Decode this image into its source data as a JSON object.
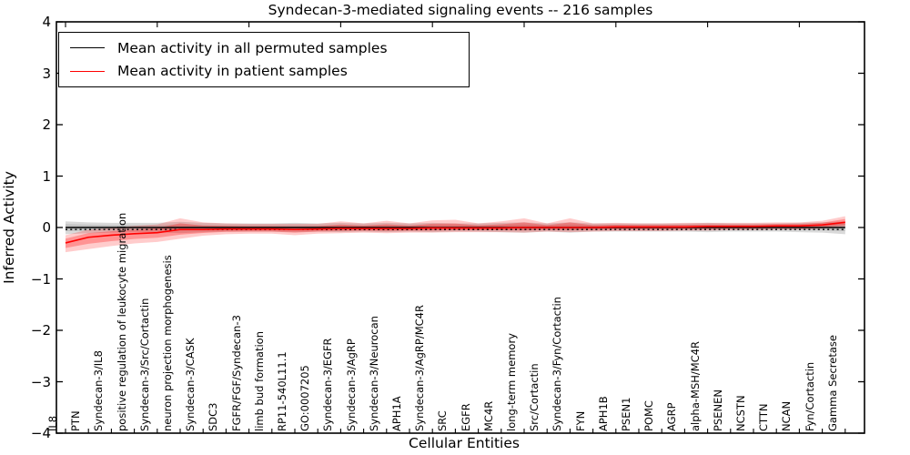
{
  "figure_background": "#ffffff",
  "chart_data": {
    "type": "line",
    "title": "Syndecan-3-mediated signaling events -- 216 samples",
    "xlabel": "Cellular Entities",
    "ylabel": "Inferred Activity",
    "ylim": [
      -4,
      4
    ],
    "ytick_labels": [
      "4",
      "3",
      "2",
      "1",
      "0",
      "−1",
      "−2",
      "−3",
      "−4"
    ],
    "ytick_values": [
      4,
      3,
      2,
      1,
      0,
      -1,
      -2,
      -3,
      -4
    ],
    "grid": false,
    "legend_position": "upper left",
    "zero_reference_line": 0,
    "categories": [
      "IL8",
      "PTN",
      "Syndecan-3/IL8",
      "positive regulation of leukocyte migration",
      "Syndecan-3/Src/Cortactin",
      "neuron projection morphogenesis",
      "Syndecan-3/CASK",
      "SDC3",
      "FGFR/FGF/Syndecan-3",
      "limb bud formation",
      "RP11-540L11.1",
      "GO:0007205",
      "Syndecan-3/EGFR",
      "Syndecan-3/AgRP",
      "Syndecan-3/Neurocan",
      "APH1A",
      "Syndecan-3/AgRP/MC4R",
      "SRC",
      "EGFR",
      "MC4R",
      "long-term memory",
      "Src/Cortactin",
      "Syndecan-3/Fyn/Cortactin",
      "FYN",
      "APH1B",
      "PSEN1",
      "POMC",
      "AGRP",
      "alpha-MSH/MC4R",
      "PSENEN",
      "NCSTN",
      "CTTN",
      "NCAN",
      "Fyn/Cortactin",
      "Gamma Secretase"
    ],
    "legend": [
      {
        "label": "Mean activity in all permuted samples",
        "color": "#000000"
      },
      {
        "label": "Mean activity in patient samples",
        "color": "#ff0000"
      }
    ],
    "series": [
      {
        "name": "Mean activity in all permuted samples",
        "color": "#000000",
        "band_color": "#808080",
        "values": [
          0,
          0,
          0,
          0,
          0,
          0,
          0,
          0,
          0,
          0,
          0,
          0,
          0,
          0,
          0,
          0,
          0,
          0,
          0,
          0,
          0,
          0,
          0,
          0,
          0,
          0,
          0,
          0,
          0,
          0,
          0,
          0,
          0,
          0,
          0
        ],
        "band_upper": [
          0.12,
          0.1,
          0.09,
          0.09,
          0.09,
          0.11,
          0.09,
          0.08,
          0.08,
          0.08,
          0.09,
          0.08,
          0.09,
          0.08,
          0.09,
          0.08,
          0.09,
          0.08,
          0.08,
          0.09,
          0.1,
          0.08,
          0.1,
          0.08,
          0.08,
          0.08,
          0.08,
          0.08,
          0.09,
          0.08,
          0.08,
          0.08,
          0.09,
          0.1,
          0.12
        ],
        "band_lower": [
          -0.13,
          -0.11,
          -0.1,
          -0.09,
          -0.09,
          -0.11,
          -0.09,
          -0.08,
          -0.08,
          -0.08,
          -0.09,
          -0.08,
          -0.09,
          -0.08,
          -0.09,
          -0.08,
          -0.09,
          -0.08,
          -0.08,
          -0.09,
          -0.1,
          -0.08,
          -0.1,
          -0.08,
          -0.08,
          -0.08,
          -0.08,
          -0.08,
          -0.09,
          -0.08,
          -0.08,
          -0.08,
          -0.09,
          -0.1,
          -0.13
        ]
      },
      {
        "name": "Mean activity in patient samples",
        "color": "#ff0000",
        "band_color": "#ff0000",
        "values": [
          -0.3,
          -0.19,
          -0.15,
          -0.12,
          -0.1,
          -0.04,
          -0.04,
          -0.03,
          -0.03,
          -0.03,
          -0.04,
          -0.03,
          -0.02,
          -0.02,
          -0.02,
          -0.02,
          -0.01,
          -0.01,
          -0.01,
          -0.01,
          0.0,
          0.0,
          0.0,
          0.0,
          0.01,
          0.01,
          0.01,
          0.01,
          0.02,
          0.02,
          0.02,
          0.03,
          0.03,
          0.05,
          0.1
        ],
        "band_upper": [
          -0.15,
          -0.04,
          -0.01,
          0.03,
          0.06,
          0.18,
          0.1,
          0.08,
          0.07,
          0.07,
          0.07,
          0.07,
          0.12,
          0.08,
          0.13,
          0.08,
          0.14,
          0.15,
          0.08,
          0.12,
          0.18,
          0.08,
          0.18,
          0.08,
          0.09,
          0.08,
          0.08,
          0.09,
          0.09,
          0.09,
          0.09,
          0.1,
          0.1,
          0.13,
          0.22
        ],
        "band_lower": [
          -0.48,
          -0.42,
          -0.36,
          -0.31,
          -0.28,
          -0.22,
          -0.16,
          -0.13,
          -0.12,
          -0.12,
          -0.15,
          -0.12,
          -0.11,
          -0.1,
          -0.11,
          -0.1,
          -0.1,
          -0.09,
          -0.09,
          -0.09,
          -0.1,
          -0.08,
          -0.09,
          -0.08,
          -0.07,
          -0.07,
          -0.07,
          -0.06,
          -0.06,
          -0.05,
          -0.05,
          -0.04,
          -0.04,
          -0.02,
          0.0
        ]
      }
    ]
  }
}
